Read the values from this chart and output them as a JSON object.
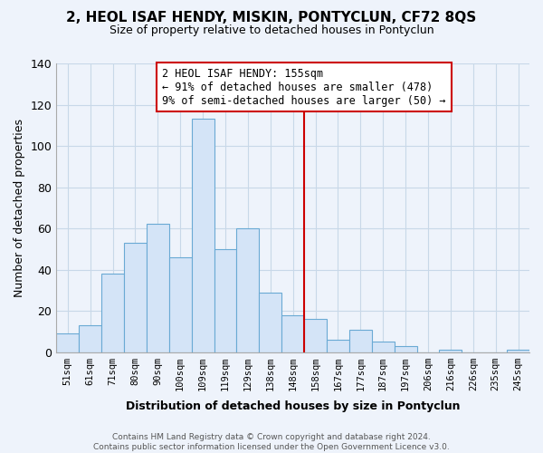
{
  "title": "2, HEOL ISAF HENDY, MISKIN, PONTYCLUN, CF72 8QS",
  "subtitle": "Size of property relative to detached houses in Pontyclun",
  "xlabel": "Distribution of detached houses by size in Pontyclun",
  "ylabel": "Number of detached properties",
  "categories": [
    "51sqm",
    "61sqm",
    "71sqm",
    "80sqm",
    "90sqm",
    "100sqm",
    "109sqm",
    "119sqm",
    "129sqm",
    "138sqm",
    "148sqm",
    "158sqm",
    "167sqm",
    "177sqm",
    "187sqm",
    "197sqm",
    "206sqm",
    "216sqm",
    "226sqm",
    "235sqm",
    "245sqm"
  ],
  "values": [
    9,
    13,
    38,
    53,
    62,
    46,
    113,
    50,
    60,
    29,
    18,
    16,
    6,
    11,
    5,
    3,
    0,
    1,
    0,
    0,
    1
  ],
  "bar_color": "#d4e4f7",
  "bar_edge_color": "#6aaad4",
  "property_line_color": "#cc0000",
  "annotation_title": "2 HEOL ISAF HENDY: 155sqm",
  "annotation_line1": "← 91% of detached houses are smaller (478)",
  "annotation_line2": "9% of semi-detached houses are larger (50) →",
  "annotation_box_color": "#ffffff",
  "annotation_box_edge": "#cc0000",
  "ylim": [
    0,
    140
  ],
  "yticks": [
    0,
    20,
    40,
    60,
    80,
    100,
    120,
    140
  ],
  "footer_line1": "Contains HM Land Registry data © Crown copyright and database right 2024.",
  "footer_line2": "Contains public sector information licensed under the Open Government Licence v3.0.",
  "grid_color": "#c8d8e8",
  "background_color": "#eef3fb"
}
